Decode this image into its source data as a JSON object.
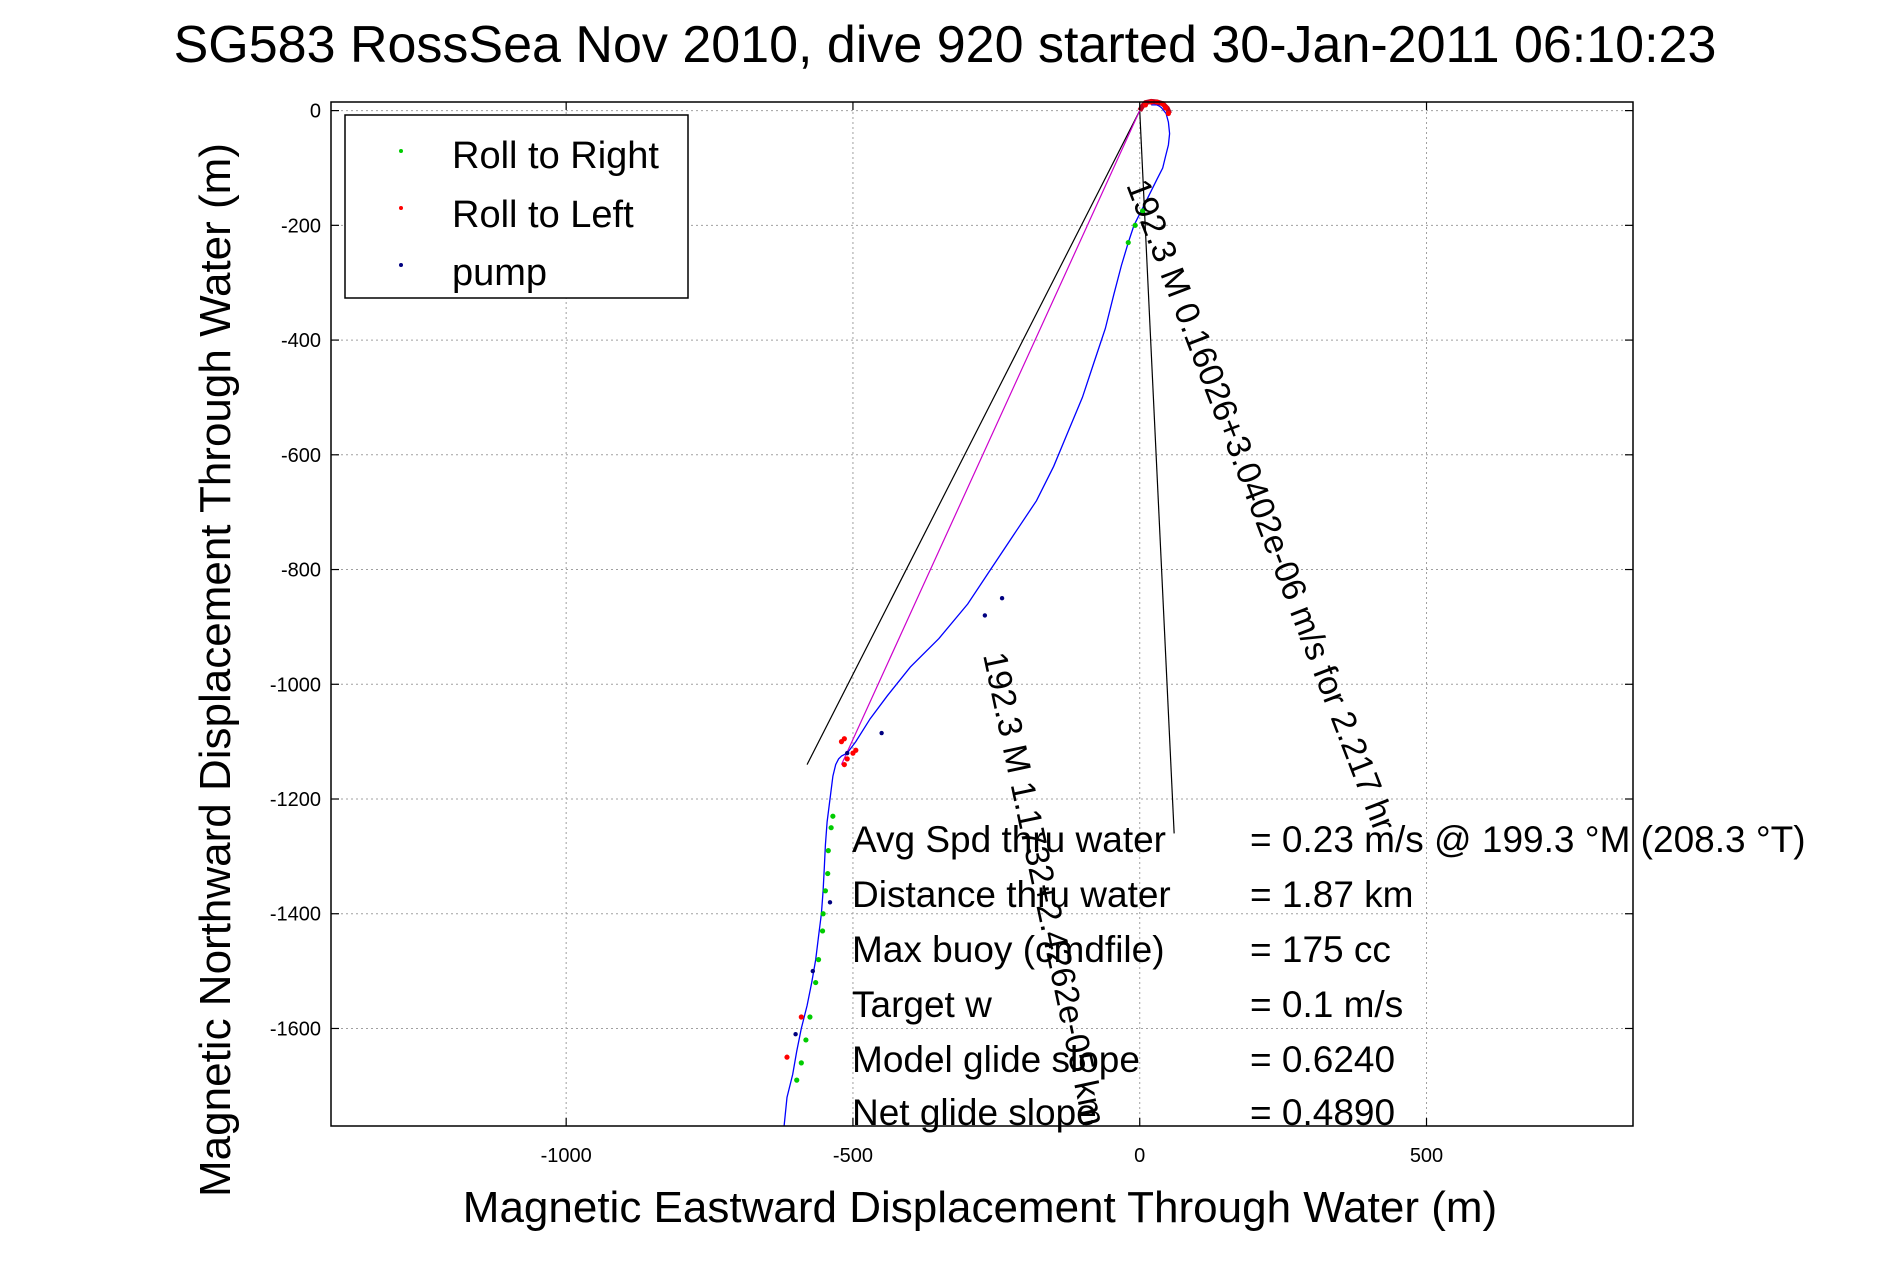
{
  "chart_data": {
    "type": "line",
    "title": "SG583 RossSea Nov 2010, dive 920 started 30-Jan-2011 06:10:23",
    "xlabel": "Magnetic Eastward Displacement Through Water (m)",
    "ylabel": "Magnetic Northward Displacement Through Water (m)",
    "xlim": [
      -1410,
      860
    ],
    "ylim": [
      -1770,
      15
    ],
    "xticks": [
      -1000,
      -500,
      0,
      500
    ],
    "yticks": [
      0,
      -200,
      -400,
      -600,
      -800,
      -1000,
      -1200,
      -1400,
      -1600
    ],
    "xtick_labels": [
      "-1000",
      "-500",
      "0",
      "500"
    ],
    "ytick_labels": [
      "0",
      "-200",
      "-400",
      "-600",
      "-800",
      "-1000",
      "-1200",
      "-1400",
      "-1600"
    ],
    "grid": true,
    "legend": {
      "placement": "top-left",
      "entries": [
        {
          "label": "Roll to Right",
          "color": "#00cc00"
        },
        {
          "label": "Roll to Left",
          "color": "#ff0000"
        },
        {
          "label": "pump",
          "color": "#000080"
        }
      ]
    },
    "colors": {
      "track": "#0000ff",
      "roll_right": "#00cc00",
      "roll_left": "#ff0000",
      "pump": "#000080",
      "surface": "#c00020",
      "direction_line": "#cc00cc",
      "frame": "#000000"
    },
    "track": {
      "x": [
        -620,
        -615,
        -605,
        -598,
        -590,
        -580,
        -572,
        -565,
        -560,
        -555,
        -552,
        -550,
        -548,
        -545,
        -540,
        -535,
        -530,
        -525,
        -520,
        -510,
        -495,
        -470,
        -440,
        -400,
        -350,
        -300,
        -260,
        -220,
        -180,
        -150,
        -125,
        -100,
        -80,
        -60,
        -45,
        -32,
        -20,
        -10,
        0,
        10,
        20,
        30,
        40,
        45,
        50,
        52,
        50,
        46,
        42,
        38,
        34,
        30,
        25,
        20
      ],
      "y": [
        -1770,
        -1720,
        -1680,
        -1640,
        -1600,
        -1560,
        -1520,
        -1480,
        -1440,
        -1400,
        -1360,
        -1320,
        -1280,
        -1240,
        -1200,
        -1160,
        -1140,
        -1130,
        -1125,
        -1120,
        -1100,
        -1060,
        -1020,
        -970,
        -920,
        -860,
        -800,
        -740,
        -680,
        -620,
        -560,
        -500,
        -440,
        -380,
        -320,
        -270,
        -230,
        -200,
        -180,
        -160,
        -140,
        -120,
        -100,
        -80,
        -60,
        -40,
        -20,
        -5,
        0,
        5,
        8,
        10,
        10,
        10
      ]
    },
    "roll_right_points": {
      "x": [
        -598,
        -590,
        -582,
        -575,
        -565,
        -560,
        -553,
        -552,
        -548,
        -544,
        -543,
        -538,
        -535,
        -20,
        -8,
        5
      ],
      "y": [
        -1690,
        -1660,
        -1620,
        -1580,
        -1520,
        -1480,
        -1430,
        -1400,
        -1360,
        -1330,
        -1290,
        -1250,
        -1230,
        -230,
        -200,
        -175
      ]
    },
    "roll_left_points": {
      "x": [
        -615,
        -590,
        -520,
        -515,
        -510,
        -515,
        -500,
        -495,
        10,
        20,
        30,
        40,
        45,
        50
      ],
      "y": [
        -1650,
        -1580,
        -1100,
        -1095,
        -1130,
        -1140,
        -1120,
        -1115,
        10,
        15,
        15,
        12,
        5,
        -5
      ]
    },
    "pump_points": {
      "x": [
        -600,
        -570,
        -540,
        -510,
        -450,
        -270,
        -240
      ],
      "y": [
        -1610,
        -1500,
        -1380,
        -1120,
        -1085,
        -880,
        -850
      ]
    },
    "surface_arc": {
      "x": [
        0,
        5,
        10,
        20,
        30,
        40,
        48,
        52
      ],
      "y": [
        0,
        8,
        14,
        16,
        15,
        12,
        4,
        -5
      ]
    },
    "direction_line": {
      "x": [
        0,
        -520
      ],
      "y": [
        0,
        -1140
      ]
    },
    "annotation_lines": [
      {
        "x": [
          -580,
          0
        ],
        "y": [
          -1140,
          0
        ]
      },
      {
        "x": [
          0,
          60
        ],
        "y": [
          0,
          -1260
        ]
      }
    ],
    "rotated_annotations": [
      "192.3 M 0.16026+3.0402e-06 m/s for 2.217 hr",
      "192.3 M 1.1732+2.4262e-05 km"
    ],
    "stats": [
      {
        "label": "Avg Spd thru water",
        "value": "=  0.23 m/s @ 199.3 °M (208.3 °T)"
      },
      {
        "label": "Distance thru water",
        "value": "=  1.87 km"
      },
      {
        "label": "Max buoy (cmdfile)",
        "value": "= 175 cc"
      },
      {
        "label": "Target w",
        "value": "= 0.1 m/s"
      },
      {
        "label": "Model glide slope",
        "value": "= 0.6240"
      },
      {
        "label": "Net glide slope",
        "value": "= 0.4890"
      }
    ]
  }
}
